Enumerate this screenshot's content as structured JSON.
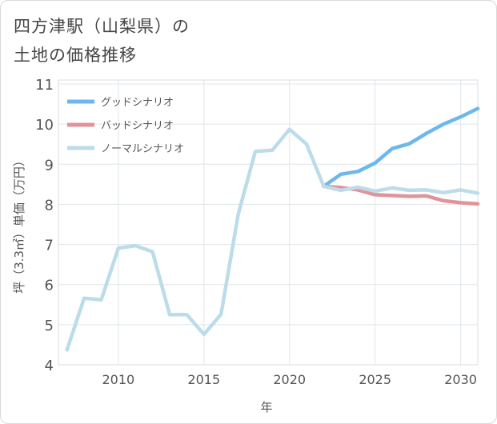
{
  "title_lines": [
    "四方津駅（山梨県）の",
    "土地の価格推移"
  ],
  "chart_data": {
    "type": "line",
    "title": "四方津駅（山梨県）の土地の価格推移",
    "xlabel": "年",
    "ylabel": "坪（3.3㎡）単価（万円）",
    "xlim": [
      2006.5,
      2031
    ],
    "ylim": [
      4,
      11.1
    ],
    "xticks": [
      2010,
      2015,
      2020,
      2025,
      2030
    ],
    "yticks": [
      4,
      5,
      6,
      7,
      8,
      9,
      10,
      11
    ],
    "grid": true,
    "legend_position": "top-left",
    "series": [
      {
        "name": "グッドシナリオ",
        "color": "#6cb8ee",
        "x": [
          2022,
          2023,
          2024,
          2025,
          2026,
          2027,
          2028,
          2029,
          2030,
          2031
        ],
        "y": [
          8.45,
          8.75,
          8.82,
          9.03,
          9.39,
          9.51,
          9.77,
          10.0,
          10.18,
          10.39
        ]
      },
      {
        "name": "バッドシナリオ",
        "color": "#e0949a",
        "x": [
          2022,
          2023,
          2024,
          2025,
          2026,
          2027,
          2028,
          2029,
          2030,
          2031
        ],
        "y": [
          8.45,
          8.42,
          8.36,
          8.24,
          8.22,
          8.2,
          8.21,
          8.09,
          8.04,
          8.01
        ]
      },
      {
        "name": "ノーマルシナリオ",
        "color": "#bcdcea",
        "x": [
          2007,
          2008,
          2009,
          2010,
          2011,
          2012,
          2013,
          2014,
          2015,
          2016,
          2017,
          2018,
          2019,
          2020,
          2021,
          2022,
          2023,
          2024,
          2025,
          2026,
          2027,
          2028,
          2029,
          2030,
          2031
        ],
        "y": [
          4.37,
          5.66,
          5.62,
          6.91,
          6.97,
          6.82,
          5.25,
          5.25,
          4.76,
          5.26,
          7.75,
          9.32,
          9.35,
          9.87,
          9.5,
          8.45,
          8.35,
          8.43,
          8.33,
          8.41,
          8.35,
          8.36,
          8.29,
          8.36,
          8.28
        ]
      }
    ]
  }
}
